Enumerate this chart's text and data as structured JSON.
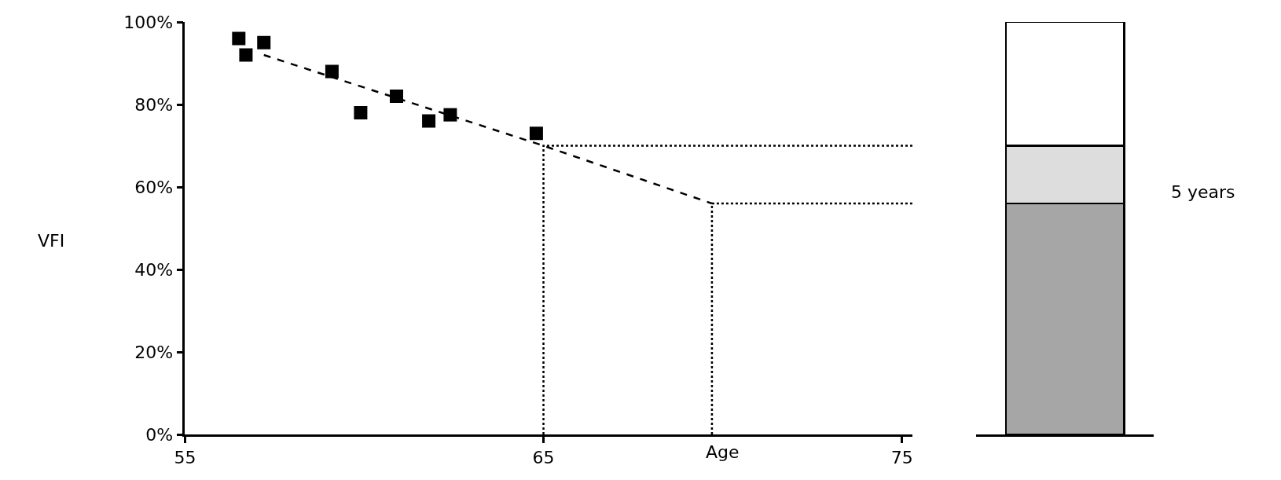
{
  "chart_data": [
    {
      "type": "scatter",
      "xlabel": "Age",
      "ylabel": "VFI",
      "xlim": [
        55,
        75.3
      ],
      "xticks": [
        55,
        65,
        75
      ],
      "ylim": [
        0,
        100
      ],
      "yticks": [
        {
          "value": 0,
          "label": "0%"
        },
        {
          "value": 20,
          "label": "20%"
        },
        {
          "value": 40,
          "label": "40%"
        },
        {
          "value": 60,
          "label": "60%"
        },
        {
          "value": 80,
          "label": "80%"
        },
        {
          "value": 100,
          "label": "100%"
        }
      ],
      "marker": "square",
      "series": [
        {
          "color": "#000000",
          "x": [
            56.5,
            56.7,
            57.2,
            59.1,
            59.9,
            60.9,
            61.8,
            62.4,
            64.8
          ],
          "values": [
            96,
            92,
            95,
            88,
            78,
            82,
            76,
            77.5,
            73
          ]
        },
        {
          "type": "line",
          "marker": "none",
          "line_style": "dashed",
          "color": "#000000",
          "x": [
            57.2,
            65,
            69.7
          ],
          "values": [
            92,
            70,
            56
          ]
        },
        {
          "type": "line",
          "marker": "none",
          "line_style": "dotted",
          "color": "#000000",
          "x": [
            65,
            65,
            75.3
          ],
          "values": [
            0,
            70,
            70
          ]
        },
        {
          "type": "line",
          "marker": "none",
          "line_style": "dotted",
          "color": "#000000",
          "x": [
            69.7,
            69.7,
            75.3
          ],
          "values": [
            0,
            56,
            56
          ]
        }
      ]
    },
    {
      "type": "bar",
      "stacked": true,
      "categories": [
        null
      ],
      "ylim": [
        0,
        100
      ],
      "tick_labels": false,
      "annotations": [
        "5 years"
      ],
      "series": [
        {
          "color": "#a6a6a6",
          "values": [
            56
          ]
        },
        {
          "color": "#dddddd",
          "values": [
            14
          ]
        },
        {
          "color": "#ffffff",
          "values": [
            30
          ]
        }
      ]
    }
  ]
}
